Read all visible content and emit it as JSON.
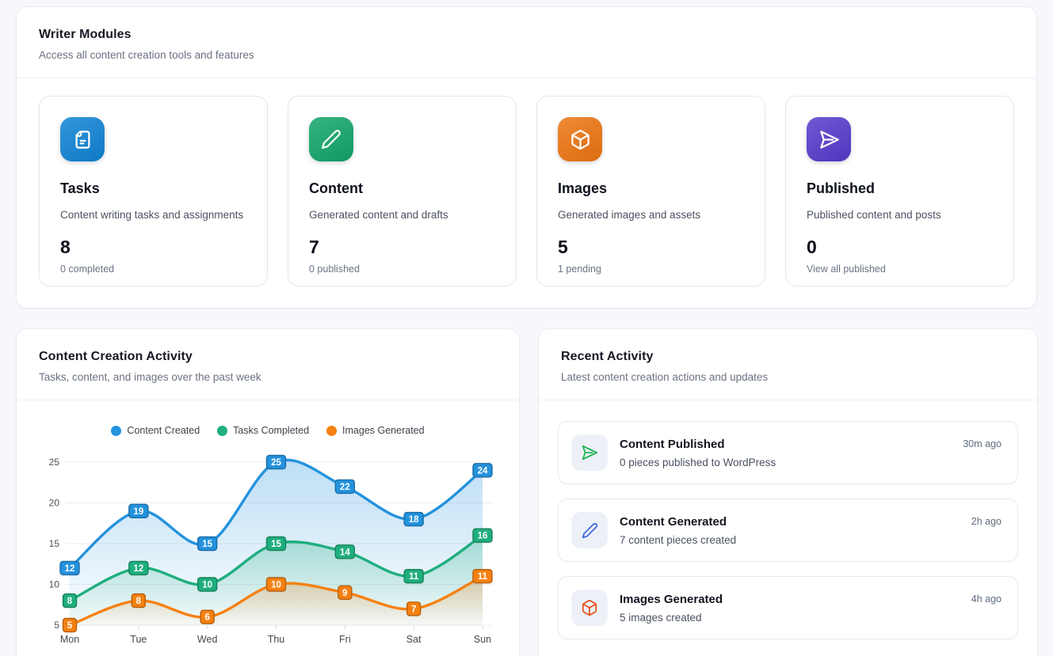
{
  "modules_panel": {
    "title": "Writer Modules",
    "subtitle": "Access all content creation tools and features",
    "cards": [
      {
        "icon": "file-text-icon",
        "icon_color": "#0e82d4",
        "title": "Tasks",
        "description": "Content writing tasks and assignments",
        "count": "8",
        "sub_label": "0 completed"
      },
      {
        "icon": "pencil-icon",
        "icon_color": "#10a568",
        "title": "Content",
        "description": "Generated content and drafts",
        "count": "7",
        "sub_label": "0 published"
      },
      {
        "icon": "cube-icon",
        "icon_color": "#ec7410",
        "title": "Images",
        "description": "Generated images and assets",
        "count": "5",
        "sub_label": "1 pending"
      },
      {
        "icon": "send-icon",
        "icon_color": "#5639cc",
        "title": "Published",
        "description": "Published content and posts",
        "count": "0",
        "sub_label": "View all published"
      }
    ]
  },
  "chart_panel": {
    "title": "Content Creation Activity",
    "subtitle": "Tasks, content, and images over the past week"
  },
  "chart_data": {
    "type": "line",
    "x": [
      "Mon",
      "Tue",
      "Wed",
      "Thu",
      "Fri",
      "Sat",
      "Sun"
    ],
    "series": [
      {
        "name": "Content Created",
        "color": "#2492dd",
        "values": [
          12,
          19,
          15,
          25,
          22,
          18,
          24
        ]
      },
      {
        "name": "Tasks Completed",
        "color": "#1fae7d",
        "values": [
          8,
          12,
          10,
          15,
          14,
          11,
          16
        ]
      },
      {
        "name": "Images Generated",
        "color": "#f58112",
        "values": [
          5,
          8,
          6,
          10,
          9,
          7,
          11
        ]
      }
    ],
    "ylim": [
      5,
      25
    ],
    "yticks": [
      5,
      10,
      15,
      20,
      25
    ],
    "grid": true,
    "smooth": true,
    "area": true,
    "data_labels": true,
    "legend_position": "top"
  },
  "recent_panel": {
    "title": "Recent Activity",
    "subtitle": "Latest content creation actions and updates",
    "items": [
      {
        "icon": "send-icon",
        "icon_color": "#22b455",
        "title": "Content Published",
        "description": "0 pieces published to WordPress",
        "time": "30m ago"
      },
      {
        "icon": "pencil-icon",
        "icon_color": "#3b66e0",
        "title": "Content Generated",
        "description": "7 content pieces created",
        "time": "2h ago"
      },
      {
        "icon": "cube-icon",
        "icon_color": "#e8551f",
        "title": "Images Generated",
        "description": "5 images created",
        "time": "4h ago"
      }
    ]
  }
}
